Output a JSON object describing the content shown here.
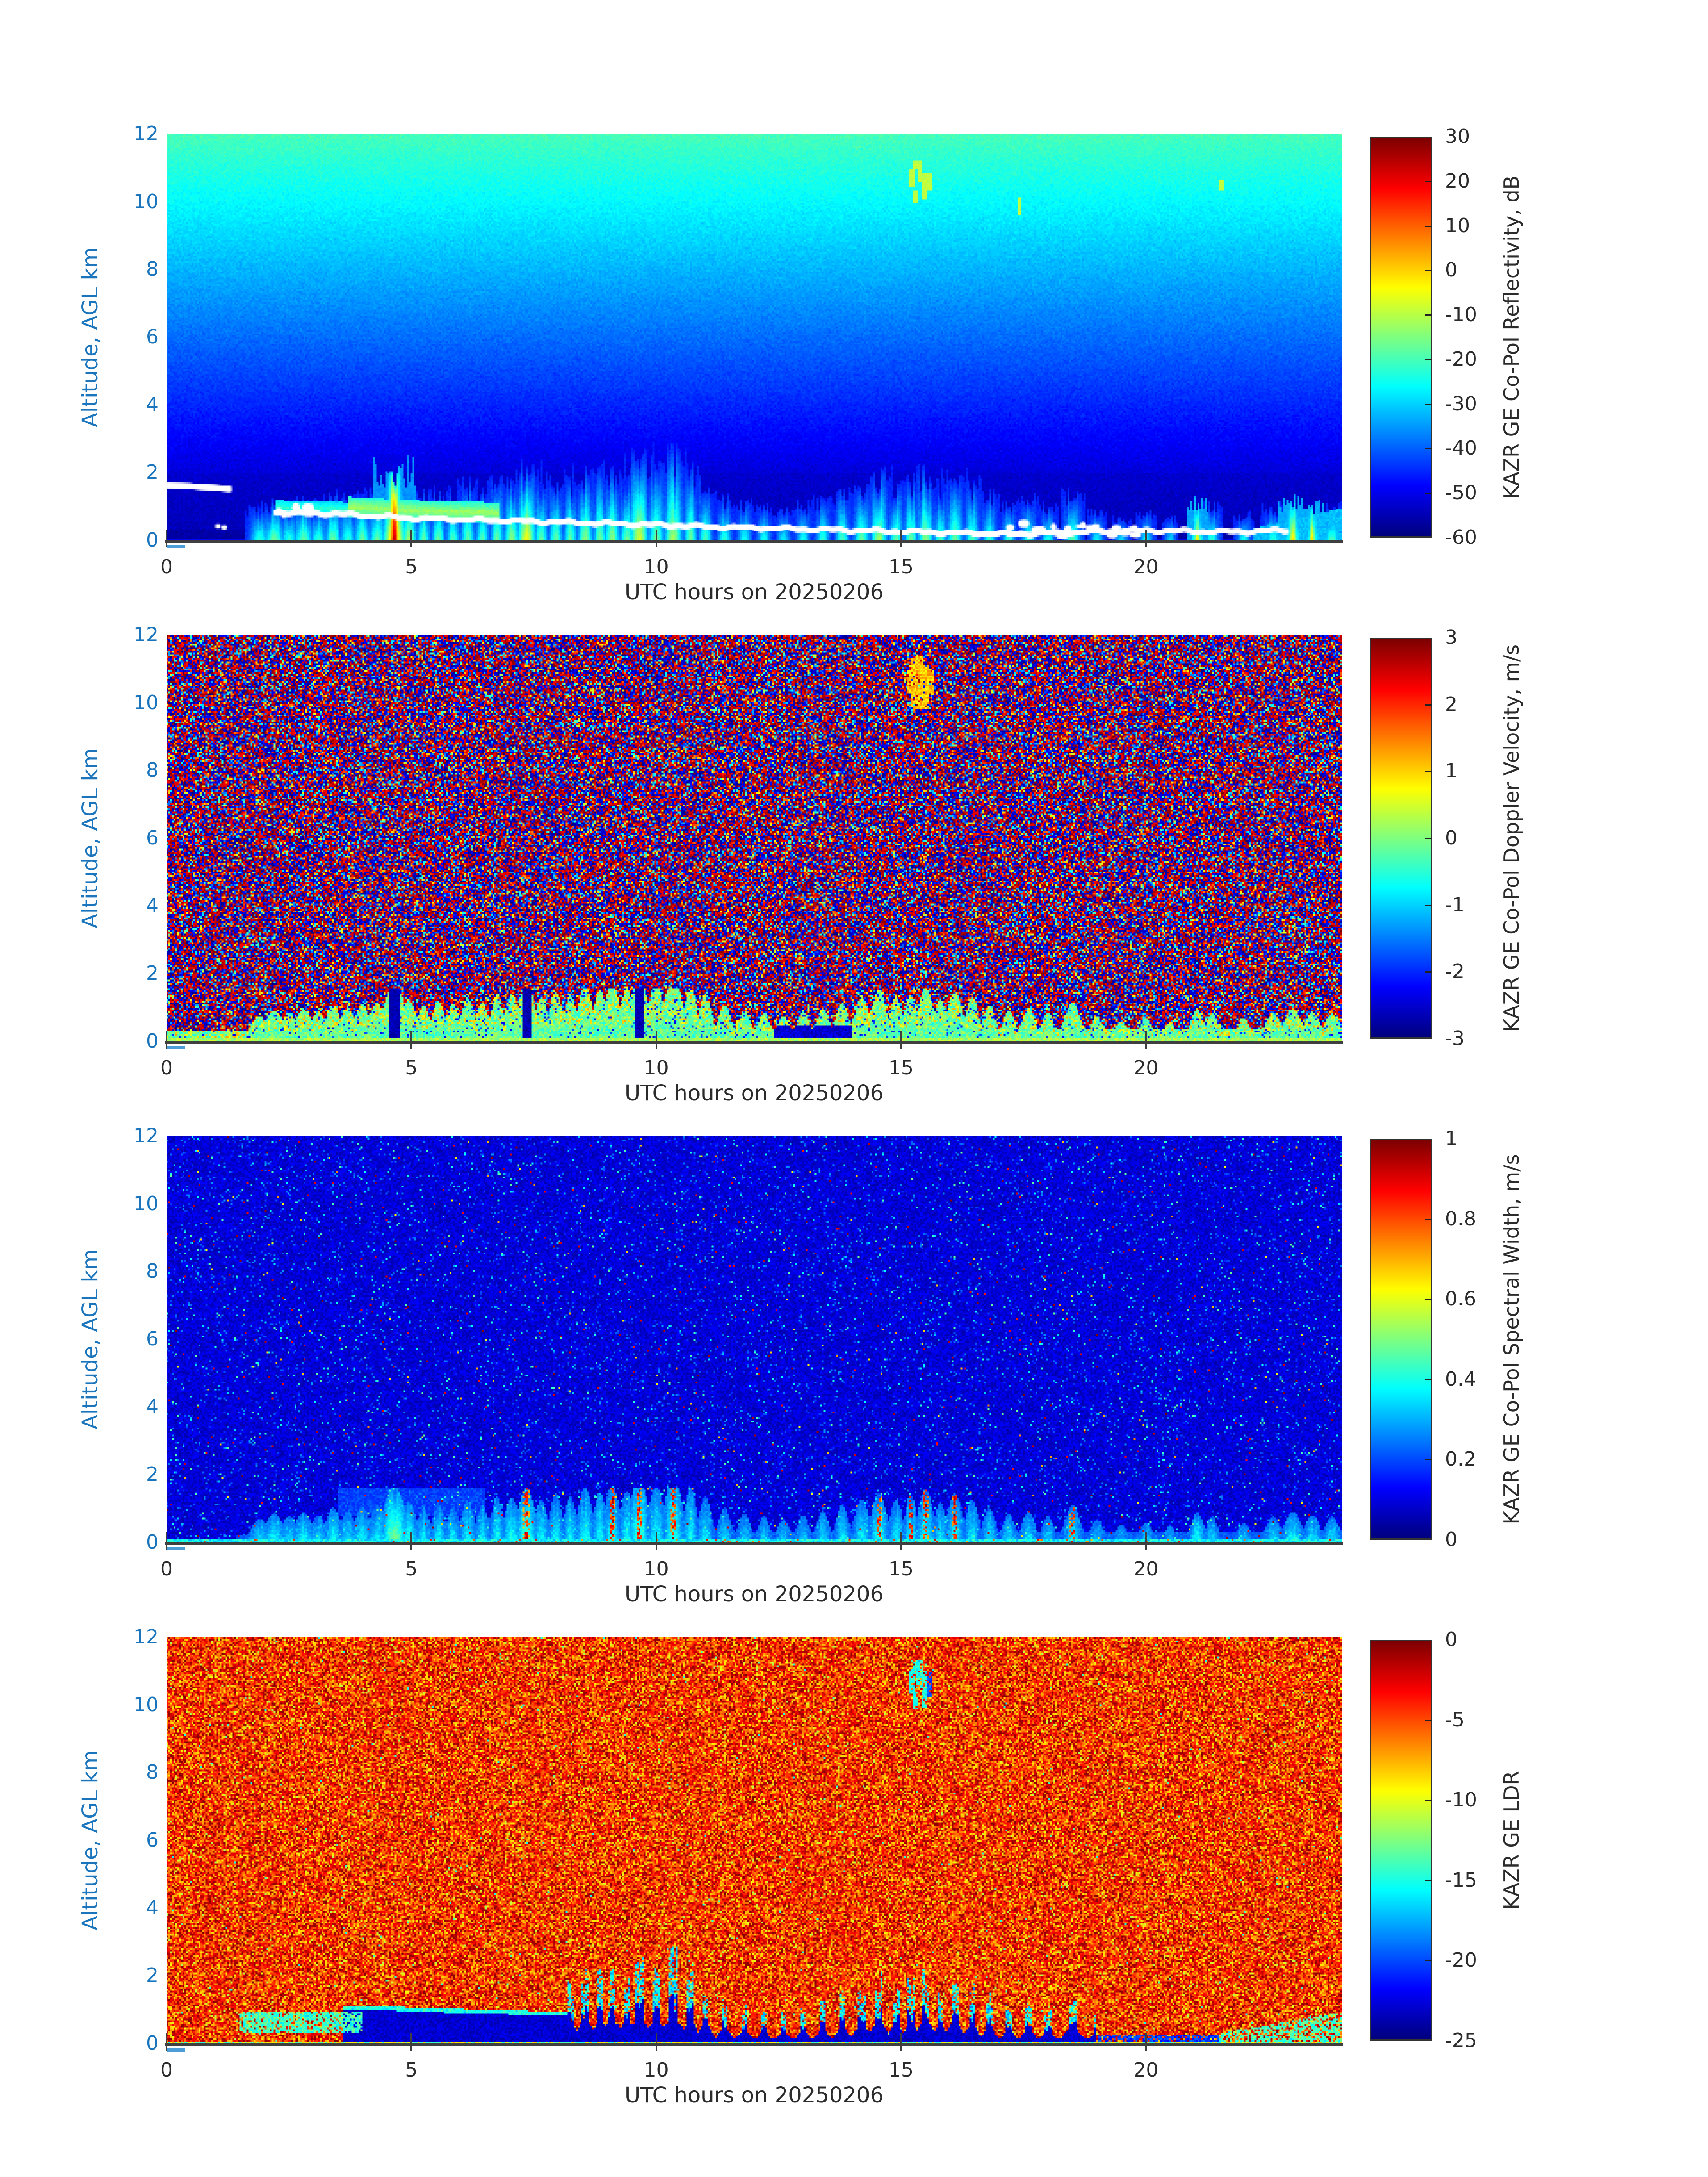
{
  "figure": {
    "kind": "radar quicklook, 4 stacked time-height heatmap panels",
    "background": "#ffffff"
  },
  "colors": {
    "y_axis_text": "#1a75bc",
    "x_axis_text": "#2b2b2b",
    "spine": "#3f3f3f",
    "colorbar_border": "#333333",
    "white_line": "#ffffff",
    "origin_dash": "#4d9ed8"
  },
  "chart_data": {
    "type": "heatmap",
    "n_panels": 4,
    "colormap": "jet",
    "xlabel": "UTC hours on 20250206",
    "ylabel": "Altitude, AGL km",
    "x_range": [
      0,
      24
    ],
    "y_range": [
      0,
      12
    ],
    "x_ticks": [
      0,
      5,
      10,
      15,
      20
    ],
    "y_ticks": [
      0,
      2,
      4,
      6,
      8,
      10,
      12
    ],
    "panels": [
      {
        "id": "reflectivity",
        "seed": 101,
        "colorbar": {
          "label": "KAZR GE Co-Pol Reflectivity, dB",
          "min": -60,
          "max": 30,
          "ticks": [
            30,
            20,
            10,
            0,
            -10,
            -20,
            -30,
            -40,
            -50,
            -60
          ]
        },
        "description": "Clear-air gradient: green-cyan (~-21 dB) at 12 km fading to dark blue (~-55 dB) below 2 km; boundary-layer echo streaks below ~2 km with a strong orange-red plume near 4.7 UTC; white lidar cloud-base line descending from ~0.8 km at 2 UTC to ~0.2 km after 16 UTC; faint yellow cirrus dashes near 15.2-15.9 UTC at 10-11 km."
      },
      {
        "id": "velocity",
        "seed": 202,
        "colorbar": {
          "label": "KAZR GE Co-Pol Doppler Velocity, m/s",
          "min": -3,
          "max": 3,
          "ticks": [
            3,
            2,
            1,
            0,
            -1,
            -2,
            -3
          ]
        },
        "description": "Random dark-red / dark-blue velocity-folding speckle everywhere except the boundary layer, where coherent cyan-green (~-0.5 to +0.3 m/s) air with yellow updraft patches and dark-blue downdraft columns appears below ~1.5 km; yellow patch at 15.2 UTC near 10.5 km."
      },
      {
        "id": "spectral_width",
        "seed": 303,
        "colorbar": {
          "label": "KAZR GE Co-Pol Spectral Width, m/s",
          "min": 0,
          "max": 1,
          "ticks": [
            1,
            0.8,
            0.6,
            0.4,
            0.2,
            0
          ]
        },
        "description": "Dark-blue background (~0.05-0.15 m/s) with sparse cyan and rare red speckles; cyan turbulent streaks (~0.3-0.5 m/s) below 2 km with red-cored columns (~0.8-1 m/s) near 7.3, 9-10.5, 14.5-16.2 and 18.5 UTC; thin cyan layer at the surface."
      },
      {
        "id": "ldr",
        "seed": 404,
        "colorbar": {
          "label": "KAZR GE LDR",
          "min": -25,
          "max": 0,
          "ticks": [
            0,
            -5,
            -10,
            -15,
            -20,
            -25
          ]
        },
        "description": "Orange/red noise field (~-2 to -9 dB) with yellow specks; coherent dark-navy low-LDR (~-24) boundary-layer echo below ~1.5 km from ~3.5 to 19 UTC with cyan fringes; cyan tongue 1.5-4 UTC near 0.5-0.9 km; cyan wedge after 21.5 UTC; small cyan patch at 15.2 UTC, 10-11 km."
      }
    ],
    "boundary_layer_events": {
      "format": [
        "time_h",
        "top_km",
        "sigma_h",
        "strength",
        "core_type(0=none,1=hot_red,2=warm_yellow,3=red_width_core)"
      ],
      "list": [
        [
          1.9,
          0.8,
          0.07,
          0.5,
          0
        ],
        [
          2.2,
          1.0,
          0.08,
          0.6,
          0
        ],
        [
          2.5,
          0.92,
          0.06,
          0.5,
          0
        ],
        [
          2.8,
          1.05,
          0.07,
          0.6,
          0
        ],
        [
          3.1,
          0.95,
          0.06,
          0.5,
          0
        ],
        [
          3.4,
          1.2,
          0.06,
          0.6,
          0
        ],
        [
          3.7,
          1.1,
          0.06,
          0.5,
          0
        ],
        [
          4.0,
          1.25,
          0.06,
          0.6,
          0
        ],
        [
          4.3,
          1.3,
          0.06,
          0.6,
          0
        ],
        [
          4.65,
          1.95,
          0.09,
          1.0,
          1
        ],
        [
          4.95,
          1.4,
          0.06,
          0.7,
          0
        ],
        [
          5.25,
          1.2,
          0.05,
          0.6,
          0
        ],
        [
          5.55,
          1.35,
          0.05,
          0.6,
          0
        ],
        [
          5.85,
          1.25,
          0.05,
          0.55,
          0
        ],
        [
          6.15,
          1.5,
          0.05,
          0.6,
          0
        ],
        [
          6.45,
          1.3,
          0.05,
          0.55,
          0
        ],
        [
          6.75,
          1.6,
          0.05,
          0.6,
          0
        ],
        [
          7.05,
          1.55,
          0.06,
          0.65,
          0
        ],
        [
          7.35,
          1.9,
          0.07,
          0.85,
          3
        ],
        [
          7.65,
          1.5,
          0.05,
          0.6,
          0
        ],
        [
          7.95,
          1.7,
          0.05,
          0.6,
          0
        ],
        [
          8.25,
          1.6,
          0.05,
          0.6,
          0
        ],
        [
          8.55,
          1.9,
          0.06,
          0.65,
          0
        ],
        [
          8.85,
          1.75,
          0.05,
          0.6,
          0
        ],
        [
          9.1,
          2.0,
          0.06,
          0.65,
          3
        ],
        [
          9.4,
          1.8,
          0.05,
          0.6,
          0
        ],
        [
          9.65,
          2.3,
          0.07,
          0.8,
          3
        ],
        [
          10.0,
          2.0,
          0.06,
          0.6,
          0
        ],
        [
          10.35,
          2.35,
          0.07,
          0.7,
          3
        ],
        [
          10.7,
          1.9,
          0.05,
          0.6,
          0
        ],
        [
          11.0,
          1.6,
          0.05,
          0.55,
          0
        ],
        [
          11.4,
          1.2,
          0.05,
          0.5,
          0
        ],
        [
          11.8,
          1.0,
          0.05,
          0.45,
          0
        ],
        [
          12.2,
          0.9,
          0.05,
          0.45,
          0
        ],
        [
          12.6,
          0.8,
          0.05,
          0.4,
          0
        ],
        [
          13.0,
          0.95,
          0.05,
          0.45,
          0
        ],
        [
          13.4,
          1.1,
          0.05,
          0.5,
          0
        ],
        [
          13.8,
          1.3,
          0.05,
          0.55,
          0
        ],
        [
          14.2,
          1.5,
          0.06,
          0.6,
          0
        ],
        [
          14.55,
          1.75,
          0.06,
          0.7,
          3
        ],
        [
          14.9,
          1.5,
          0.05,
          0.6,
          0
        ],
        [
          15.2,
          1.6,
          0.05,
          0.6,
          3
        ],
        [
          15.5,
          1.85,
          0.06,
          0.65,
          3
        ],
        [
          15.8,
          1.4,
          0.05,
          0.55,
          0
        ],
        [
          16.1,
          1.7,
          0.06,
          0.6,
          3
        ],
        [
          16.45,
          1.5,
          0.05,
          0.55,
          0
        ],
        [
          16.8,
          1.2,
          0.05,
          0.5,
          0
        ],
        [
          17.2,
          1.0,
          0.05,
          0.5,
          0
        ],
        [
          17.6,
          1.1,
          0.05,
          0.5,
          0
        ],
        [
          18.0,
          0.9,
          0.05,
          0.45,
          0
        ],
        [
          18.5,
          1.3,
          0.06,
          0.55,
          3
        ],
        [
          19.0,
          0.8,
          0.05,
          0.4,
          0
        ],
        [
          19.5,
          0.6,
          0.05,
          0.35,
          0
        ],
        [
          20.0,
          0.7,
          0.05,
          0.4,
          0
        ],
        [
          20.5,
          0.6,
          0.04,
          0.35,
          0
        ],
        [
          21.05,
          1.05,
          0.05,
          0.7,
          2
        ],
        [
          21.35,
          0.9,
          0.05,
          0.5,
          0
        ],
        [
          22.0,
          0.7,
          0.05,
          0.45,
          0
        ],
        [
          22.6,
          0.9,
          0.06,
          0.5,
          0
        ],
        [
          23.0,
          1.05,
          0.07,
          0.6,
          2
        ],
        [
          23.4,
          0.95,
          0.06,
          0.55,
          2
        ],
        [
          23.8,
          0.9,
          0.06,
          0.55,
          0
        ]
      ]
    },
    "cirrus_dashes": {
      "format": [
        "time_h",
        "alt_km",
        "length_km"
      ],
      "list": [
        [
          15.22,
          10.7,
          0.5
        ],
        [
          15.3,
          10.15,
          0.4
        ],
        [
          15.38,
          10.9,
          0.6
        ],
        [
          15.48,
          10.45,
          0.8
        ],
        [
          15.58,
          10.6,
          0.5
        ],
        [
          15.3,
          11.1,
          0.25
        ],
        [
          17.42,
          9.85,
          0.5
        ],
        [
          21.55,
          10.5,
          0.3
        ]
      ]
    },
    "lidar_cloud_base_line": {
      "early_segment": [
        [
          0,
          1.62
        ],
        [
          0.45,
          1.6
        ],
        [
          0.9,
          1.56
        ],
        [
          1.3,
          1.52
        ]
      ],
      "main_segment": [
        [
          2.2,
          0.85
        ],
        [
          2.6,
          0.8
        ],
        [
          3.0,
          0.8
        ],
        [
          3.5,
          0.78
        ],
        [
          4.0,
          0.74
        ],
        [
          4.5,
          0.7
        ],
        [
          5.0,
          0.66
        ],
        [
          5.5,
          0.64
        ],
        [
          6.0,
          0.62
        ],
        [
          6.5,
          0.6
        ],
        [
          7.0,
          0.58
        ],
        [
          7.5,
          0.56
        ],
        [
          8.0,
          0.54
        ],
        [
          8.5,
          0.52
        ],
        [
          9.0,
          0.5
        ],
        [
          9.5,
          0.48
        ],
        [
          10.0,
          0.46
        ],
        [
          10.5,
          0.44
        ],
        [
          11.0,
          0.41
        ],
        [
          11.5,
          0.39
        ],
        [
          12.0,
          0.37
        ],
        [
          12.5,
          0.35
        ],
        [
          13.0,
          0.33
        ],
        [
          13.5,
          0.31
        ],
        [
          14.0,
          0.3
        ],
        [
          14.5,
          0.28
        ],
        [
          15.0,
          0.27
        ],
        [
          15.5,
          0.25
        ],
        [
          16.0,
          0.23
        ],
        [
          16.5,
          0.21
        ],
        [
          17.0,
          0.2
        ],
        [
          17.5,
          0.2
        ],
        [
          18.0,
          0.22
        ],
        [
          18.5,
          0.24
        ],
        [
          19.0,
          0.26
        ],
        [
          19.5,
          0.28
        ],
        [
          20.0,
          0.29
        ],
        [
          20.5,
          0.28
        ],
        [
          21.0,
          0.27
        ],
        [
          21.5,
          0.26
        ],
        [
          22.0,
          0.26
        ],
        [
          22.5,
          0.28
        ],
        [
          22.9,
          0.3
        ]
      ],
      "blob_clusters": [
        {
          "t": [
            17.2,
            19.8
          ],
          "alt": [
            0.12,
            0.5
          ],
          "count": 26
        },
        {
          "t": [
            2.25,
            3.1
          ],
          "alt": [
            0.75,
            1.0
          ],
          "count": 8
        }
      ],
      "dots": [
        [
          1.05,
          0.42
        ],
        [
          1.18,
          0.38
        ]
      ]
    }
  }
}
